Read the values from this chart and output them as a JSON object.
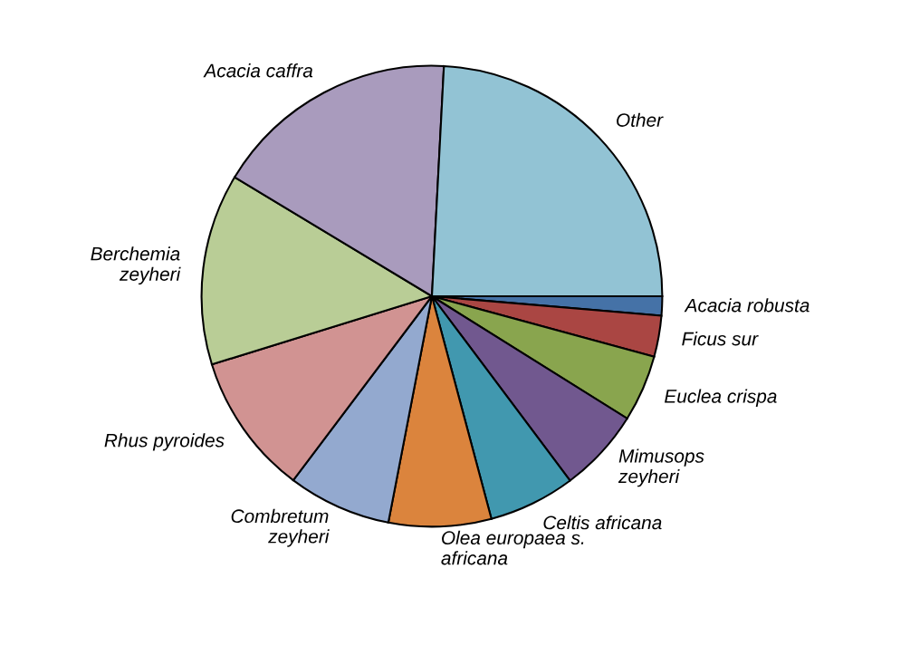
{
  "chart_data": {
    "type": "pie",
    "categories": [
      "Acacia robusta",
      "Ficus sur",
      "Euclea crispa",
      "Mimusops\nzeyheri",
      "Celtis africana",
      "Olea europaea s.\nafricana",
      "Combretum\nzeyheri",
      "Rhus pyroides",
      "Berchemia\nzeyheri",
      "Acacia caffra",
      "Other"
    ],
    "values": [
      1.35,
      2.88,
      4.67,
      5.86,
      6.08,
      7.19,
      7.25,
      9.94,
      13.42,
      17.19,
      24.17
    ],
    "colors": [
      "#4572a7",
      "#aa4643",
      "#89a54e",
      "#71588f",
      "#4198af",
      "#db843d",
      "#93a9cf",
      "#d19392",
      "#b9cd96",
      "#a99bbd",
      "#92c3d4"
    ],
    "legend": false
  }
}
